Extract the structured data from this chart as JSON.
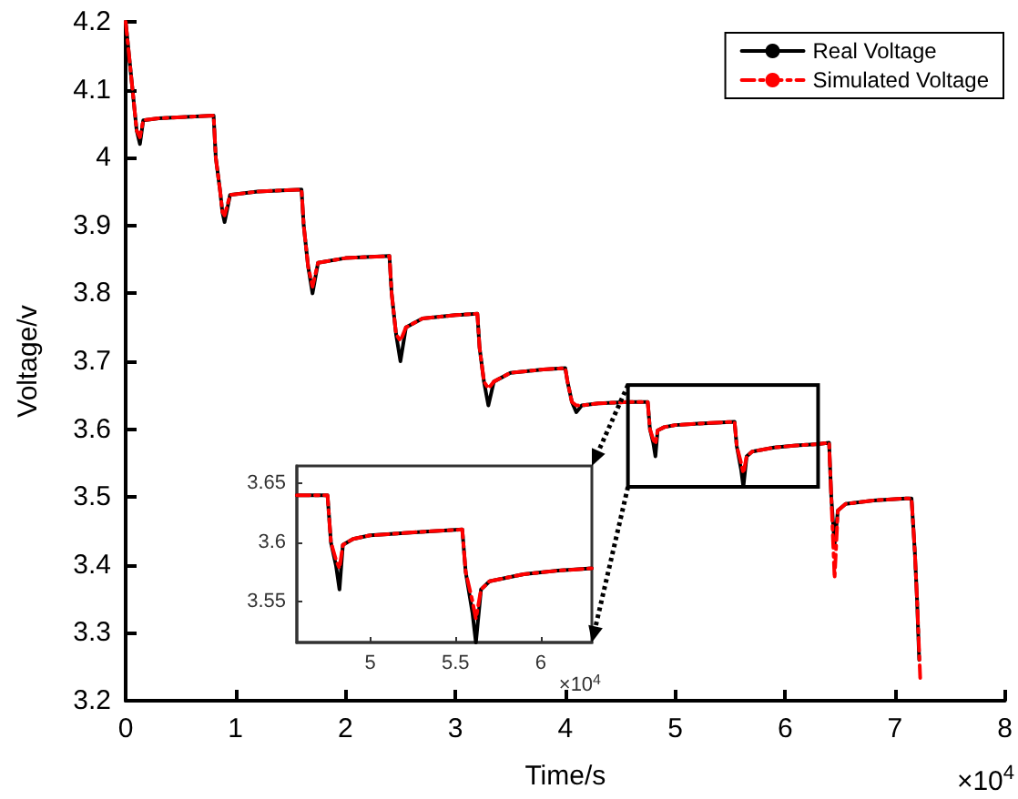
{
  "chart_data": [
    {
      "type": "line",
      "xlabel": "Time/s",
      "ylabel": "Voltage/v",
      "annotations": [
        "×10$^{4}$"
      ],
      "xlim": [
        0,
        8
      ],
      "ylim": [
        3.2,
        4.2
      ],
      "xticks": [
        0,
        1,
        2,
        3,
        4,
        5,
        6,
        7,
        8
      ],
      "yticks": [
        3.2,
        3.3,
        3.4,
        3.5,
        3.6,
        3.7,
        3.8,
        3.9,
        4,
        4.1,
        4.2
      ],
      "grid": false,
      "legend": "top right",
      "marker": "none",
      "series": [
        {
          "name": "Real Voltage",
          "color": "#000000",
          "line_style": "solid",
          "x": [
            0,
            0.05,
            0.1,
            0.13,
            0.16,
            0.3,
            0.8,
            0.82,
            0.86,
            0.88,
            0.9,
            0.95,
            1.2,
            1.6,
            1.62,
            1.66,
            1.7,
            1.75,
            2.0,
            2.4,
            2.42,
            2.46,
            2.5,
            2.55,
            2.7,
            3.0,
            3.2,
            3.22,
            3.26,
            3.3,
            3.35,
            3.5,
            3.8,
            4.0,
            4.02,
            4.06,
            4.1,
            4.15,
            4.3,
            4.57,
            4.75,
            4.77,
            4.8,
            4.82,
            4.84,
            4.9,
            5.0,
            5.3,
            5.54,
            5.56,
            5.6,
            5.62,
            5.65,
            5.7,
            5.9,
            6.1,
            6.3,
            6.4,
            6.42,
            6.45,
            6.48,
            6.55,
            6.8,
            7.1,
            7.15,
            7.18,
            7.2,
            7.22
          ],
          "values": [
            4.2,
            4.12,
            4.04,
            4.02,
            4.055,
            4.058,
            4.062,
            4.0,
            3.95,
            3.92,
            3.905,
            3.945,
            3.95,
            3.953,
            3.9,
            3.84,
            3.8,
            3.845,
            3.852,
            3.855,
            3.8,
            3.74,
            3.7,
            3.75,
            3.763,
            3.768,
            3.77,
            3.72,
            3.67,
            3.635,
            3.67,
            3.683,
            3.688,
            3.69,
            3.67,
            3.64,
            3.625,
            3.635,
            3.638,
            3.64,
            3.64,
            3.6,
            3.58,
            3.56,
            3.598,
            3.603,
            3.606,
            3.609,
            3.611,
            3.575,
            3.54,
            3.515,
            3.56,
            3.567,
            3.573,
            3.576,
            3.578,
            3.58,
            3.5,
            3.43,
            3.48,
            3.49,
            3.495,
            3.498,
            3.498,
            3.42,
            3.35,
            3.26
          ]
        },
        {
          "name": "Simulated Voltage",
          "color": "#ff0000",
          "line_style": "dashed",
          "x": [
            0,
            0.05,
            0.1,
            0.13,
            0.16,
            0.3,
            0.8,
            0.82,
            0.86,
            0.88,
            0.9,
            0.95,
            1.2,
            1.6,
            1.62,
            1.66,
            1.7,
            1.75,
            2.0,
            2.4,
            2.42,
            2.46,
            2.5,
            2.55,
            2.7,
            3.0,
            3.2,
            3.22,
            3.26,
            3.3,
            3.35,
            3.5,
            3.8,
            4.0,
            4.02,
            4.06,
            4.1,
            4.15,
            4.3,
            4.57,
            4.75,
            4.77,
            4.8,
            4.82,
            4.84,
            4.9,
            5.0,
            5.3,
            5.54,
            5.56,
            5.6,
            5.62,
            5.65,
            5.7,
            5.9,
            6.1,
            6.3,
            6.4,
            6.42,
            6.45,
            6.48,
            6.55,
            6.8,
            7.1,
            7.15,
            7.18,
            7.2,
            7.23
          ],
          "values": [
            4.2,
            4.12,
            4.04,
            4.03,
            4.055,
            4.058,
            4.062,
            4.0,
            3.95,
            3.92,
            3.915,
            3.945,
            3.95,
            3.953,
            3.9,
            3.84,
            3.81,
            3.845,
            3.852,
            3.855,
            3.8,
            3.74,
            3.73,
            3.75,
            3.763,
            3.768,
            3.77,
            3.72,
            3.67,
            3.66,
            3.67,
            3.683,
            3.688,
            3.69,
            3.67,
            3.64,
            3.635,
            3.635,
            3.638,
            3.64,
            3.64,
            3.6,
            3.585,
            3.578,
            3.598,
            3.603,
            3.606,
            3.609,
            3.611,
            3.575,
            3.55,
            3.535,
            3.56,
            3.567,
            3.573,
            3.576,
            3.578,
            3.58,
            3.5,
            3.38,
            3.48,
            3.49,
            3.495,
            3.498,
            3.498,
            3.42,
            3.35,
            3.23
          ]
        }
      ]
    },
    {
      "type": "line",
      "annotations": [
        "×10$^{4}$"
      ],
      "xlim": [
        4.57,
        6.3
      ],
      "ylim": [
        3.515,
        3.665
      ],
      "xticks": [
        5,
        5.5,
        6
      ],
      "yticks": [
        3.55,
        3.6,
        3.65
      ],
      "grid": false,
      "marker": "none",
      "series": [
        {
          "color": "#000000",
          "line_style": "solid",
          "x": [
            4.57,
            4.75,
            4.77,
            4.8,
            4.82,
            4.84,
            4.9,
            5.0,
            5.3,
            5.54,
            5.56,
            5.6,
            5.62,
            5.65,
            5.7,
            5.9,
            6.1,
            6.3
          ],
          "values": [
            3.64,
            3.64,
            3.6,
            3.58,
            3.56,
            3.598,
            3.603,
            3.606,
            3.609,
            3.611,
            3.575,
            3.54,
            3.515,
            3.56,
            3.567,
            3.573,
            3.576,
            3.578
          ]
        },
        {
          "color": "#ff0000",
          "line_style": "dashed",
          "x": [
            4.57,
            4.75,
            4.77,
            4.8,
            4.82,
            4.84,
            4.9,
            5.0,
            5.3,
            5.54,
            5.56,
            5.6,
            5.62,
            5.65,
            5.7,
            5.9,
            6.1,
            6.3
          ],
          "values": [
            3.64,
            3.64,
            3.6,
            3.585,
            3.578,
            3.598,
            3.603,
            3.606,
            3.609,
            3.611,
            3.575,
            3.55,
            3.535,
            3.56,
            3.567,
            3.573,
            3.576,
            3.578
          ]
        }
      ]
    }
  ]
}
